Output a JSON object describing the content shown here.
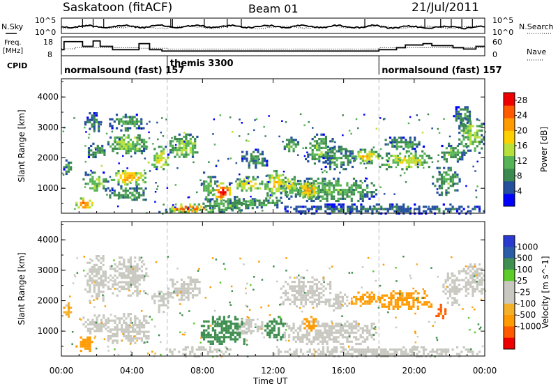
{
  "header": {
    "site": "Saskatoon (fitACF)",
    "beam": "Beam 01",
    "date": "21/Jul/2011"
  },
  "left_labels": {
    "nsky": "N.Sky",
    "freq_line1": "Freq.",
    "freq_line2": "[MHz]",
    "cpid": "CPID"
  },
  "right_labels": {
    "nsearch": "N.Search",
    "nave": "Nave"
  },
  "noise_axis": {
    "left_top": "10^5",
    "left_bottom": "10^0",
    "right_top": "10^5",
    "right_bottom": "10^0"
  },
  "freq_axis": {
    "left_top": "18",
    "left_bottom": "8",
    "right_top": "60",
    "right_bottom": "0"
  },
  "cpid_segments": [
    {
      "start_hour": 0,
      "label": "normalsound (fast) 157"
    },
    {
      "start_hour": 6,
      "label": "themis 3300"
    },
    {
      "start_hour": 18,
      "label": "normalsound (fast) 157"
    }
  ],
  "colors": {
    "power": [
      "#0000ff",
      "#234f9c",
      "#3d8a50",
      "#56b356",
      "#b8e03a",
      "#ffd000",
      "#ff9a00",
      "#ff5a00",
      "#ee0000"
    ],
    "velocity": [
      "#ee0000",
      "#ff5a00",
      "#ff9a00",
      "#f5b02a",
      "#c8c8c0",
      "#c8c8c0",
      "#5ccc2a",
      "#3f8f50",
      "#2a5ca8",
      "#2a3ad0"
    ],
    "ground": "#c8c8c0"
  },
  "chart_data": [
    {
      "type": "heatmap",
      "title": "Power",
      "xlabel": "",
      "ylabel": "Slant Range [km]",
      "xlim": [
        0,
        24
      ],
      "ylim": [
        180,
        4600
      ],
      "x_ticks": [
        "00:00",
        "04:00",
        "08:00",
        "12:00",
        "16:00",
        "20:00",
        "00:00"
      ],
      "y_ticks": [
        "1000",
        "2000",
        "3000",
        "4000"
      ],
      "colorbar": {
        "label": "Power [dB]",
        "ticks": [
          "4",
          "8",
          "12",
          "16",
          "20",
          "24",
          "28"
        ],
        "range": [
          0,
          30
        ]
      },
      "regions": [
        {
          "t": [
            0.1,
            0.6
          ],
          "r": [
            1500,
            1950
          ],
          "v": 10
        },
        {
          "t": [
            0.8,
            1.8
          ],
          "r": [
            350,
            700
          ],
          "v": 24
        },
        {
          "t": [
            1.2,
            2.6
          ],
          "r": [
            900,
            1550
          ],
          "v": 13
        },
        {
          "t": [
            1.5,
            2.5
          ],
          "r": [
            2000,
            2500
          ],
          "v": 11
        },
        {
          "t": [
            1.3,
            2.2
          ],
          "r": [
            2900,
            3500
          ],
          "v": 8
        },
        {
          "t": [
            2.7,
            5.0
          ],
          "r": [
            600,
            1100
          ],
          "v": 10
        },
        {
          "t": [
            2.8,
            4.8
          ],
          "r": [
            1150,
            1600
          ],
          "v": 21
        },
        {
          "t": [
            2.6,
            4.8
          ],
          "r": [
            2150,
            2850
          ],
          "v": 14
        },
        {
          "t": [
            2.7,
            4.6
          ],
          "r": [
            2900,
            3450
          ],
          "v": 10
        },
        {
          "t": [
            5.1,
            6.1
          ],
          "r": [
            1600,
            2400
          ],
          "v": 17
        },
        {
          "t": [
            6.0,
            7.8
          ],
          "r": [
            2000,
            2800
          ],
          "v": 14
        },
        {
          "t": [
            5.5,
            9.6
          ],
          "r": [
            200,
            400
          ],
          "v": 12
        },
        {
          "t": [
            6.1,
            8.2
          ],
          "r": [
            250,
            500
          ],
          "v": 26
        },
        {
          "t": [
            8.0,
            11.0
          ],
          "r": [
            250,
            750
          ],
          "v": 11
        },
        {
          "t": [
            7.9,
            8.8
          ],
          "r": [
            600,
            1550
          ],
          "v": 12
        },
        {
          "t": [
            8.6,
            9.6
          ],
          "r": [
            650,
            1200
          ],
          "v": 27
        },
        {
          "t": [
            9.4,
            12.8
          ],
          "r": [
            400,
            700
          ],
          "v": 11
        },
        {
          "t": [
            9.8,
            11.4
          ],
          "r": [
            900,
            1400
          ],
          "v": 17
        },
        {
          "t": [
            11.5,
            12.7
          ],
          "r": [
            700,
            1600
          ],
          "v": 18
        },
        {
          "t": [
            10.2,
            11.6
          ],
          "r": [
            1650,
            2300
          ],
          "v": 9
        },
        {
          "t": [
            12.6,
            17.8
          ],
          "r": [
            600,
            1350
          ],
          "v": 12
        },
        {
          "t": [
            13.4,
            14.6
          ],
          "r": [
            700,
            1250
          ],
          "v": 21
        },
        {
          "t": [
            12.4,
            13.4
          ],
          "r": [
            800,
            1400
          ],
          "v": 17
        },
        {
          "t": [
            12.6,
            13.4
          ],
          "r": [
            2200,
            2700
          ],
          "v": 12
        },
        {
          "t": [
            13.8,
            15.4
          ],
          "r": [
            1800,
            2800
          ],
          "v": 12
        },
        {
          "t": [
            14.8,
            16.6
          ],
          "r": [
            1600,
            2400
          ],
          "v": 10
        },
        {
          "t": [
            16.4,
            18.0
          ],
          "r": [
            1850,
            2300
          ],
          "v": 18
        },
        {
          "t": [
            18.0,
            21.0
          ],
          "r": [
            1650,
            2250
          ],
          "v": 16
        },
        {
          "t": [
            18.2,
            20.5
          ],
          "r": [
            2300,
            2700
          ],
          "v": 10
        },
        {
          "t": [
            21.0,
            22.6
          ],
          "r": [
            800,
            1700
          ],
          "v": 11
        },
        {
          "t": [
            21.4,
            22.8
          ],
          "r": [
            1900,
            2500
          ],
          "v": 12
        },
        {
          "t": [
            22.5,
            23.9
          ],
          "r": [
            2200,
            3300
          ],
          "v": 14
        },
        {
          "t": [
            22.2,
            23.2
          ],
          "r": [
            3100,
            3700
          ],
          "v": 9
        },
        {
          "t": [
            12.0,
            23.9
          ],
          "r": [
            200,
            500
          ],
          "v": 7
        }
      ]
    },
    {
      "type": "heatmap",
      "title": "Velocity",
      "xlabel": "Time UT",
      "ylabel": "Slant Range [km]",
      "xlim": [
        0,
        24
      ],
      "ylim": [
        180,
        4600
      ],
      "x_ticks": [
        "00:00",
        "04:00",
        "08:00",
        "12:00",
        "16:00",
        "20:00",
        "00:00"
      ],
      "y_ticks": [
        "1000",
        "2000",
        "3000",
        "4000"
      ],
      "colorbar": {
        "label": "Velocity [m s^-1]",
        "ticks": [
          "1000",
          "500",
          "100",
          "25",
          "-25",
          "-100",
          "-500",
          "-1000"
        ],
        "range": [
          -1200,
          1200
        ]
      },
      "regions": [
        {
          "t": [
            0.1,
            0.6
          ],
          "r": [
            1500,
            1950
          ],
          "v": -80
        },
        {
          "t": [
            0.8,
            1.8
          ],
          "r": [
            350,
            900
          ],
          "v": -300
        },
        {
          "t": [
            1.2,
            2.6
          ],
          "r": [
            900,
            1550
          ],
          "v": 0
        },
        {
          "t": [
            1.3,
            2.5
          ],
          "r": [
            2000,
            3500
          ],
          "v": 0
        },
        {
          "t": [
            2.6,
            5.0
          ],
          "r": [
            600,
            1600
          ],
          "v": 0
        },
        {
          "t": [
            2.6,
            4.8
          ],
          "r": [
            2150,
            3450
          ],
          "v": 0
        },
        {
          "t": [
            5.1,
            6.1
          ],
          "r": [
            1600,
            2400
          ],
          "v": 0
        },
        {
          "t": [
            6.0,
            7.8
          ],
          "r": [
            2000,
            2800
          ],
          "v": 0
        },
        {
          "t": [
            6.1,
            9.6
          ],
          "r": [
            200,
            500
          ],
          "v": 0
        },
        {
          "t": [
            7.9,
            10.5
          ],
          "r": [
            600,
            1500
          ],
          "v": 200
        },
        {
          "t": [
            9.8,
            11.4
          ],
          "r": [
            900,
            1400
          ],
          "v": 20
        },
        {
          "t": [
            11.5,
            12.7
          ],
          "r": [
            700,
            1500
          ],
          "v": 200
        },
        {
          "t": [
            12.6,
            17.8
          ],
          "r": [
            600,
            1350
          ],
          "v": 0
        },
        {
          "t": [
            13.6,
            14.4
          ],
          "r": [
            1000,
            1500
          ],
          "v": -150
        },
        {
          "t": [
            12.4,
            15.4
          ],
          "r": [
            1800,
            2800
          ],
          "v": 0
        },
        {
          "t": [
            15.0,
            16.2
          ],
          "r": [
            1700,
            2300
          ],
          "v": 0
        },
        {
          "t": [
            16.4,
            18.0
          ],
          "r": [
            1850,
            2300
          ],
          "v": -120
        },
        {
          "t": [
            18.0,
            21.0
          ],
          "r": [
            1750,
            2350
          ],
          "v": -200
        },
        {
          "t": [
            21.2,
            21.8
          ],
          "r": [
            1400,
            1900
          ],
          "v": -700
        },
        {
          "t": [
            21.6,
            22.6
          ],
          "r": [
            1900,
            3000
          ],
          "v": 0
        },
        {
          "t": [
            22.5,
            23.9
          ],
          "r": [
            2200,
            3300
          ],
          "v": 0
        },
        {
          "t": [
            12.0,
            23.9
          ],
          "r": [
            200,
            500
          ],
          "v": 0
        }
      ]
    }
  ]
}
